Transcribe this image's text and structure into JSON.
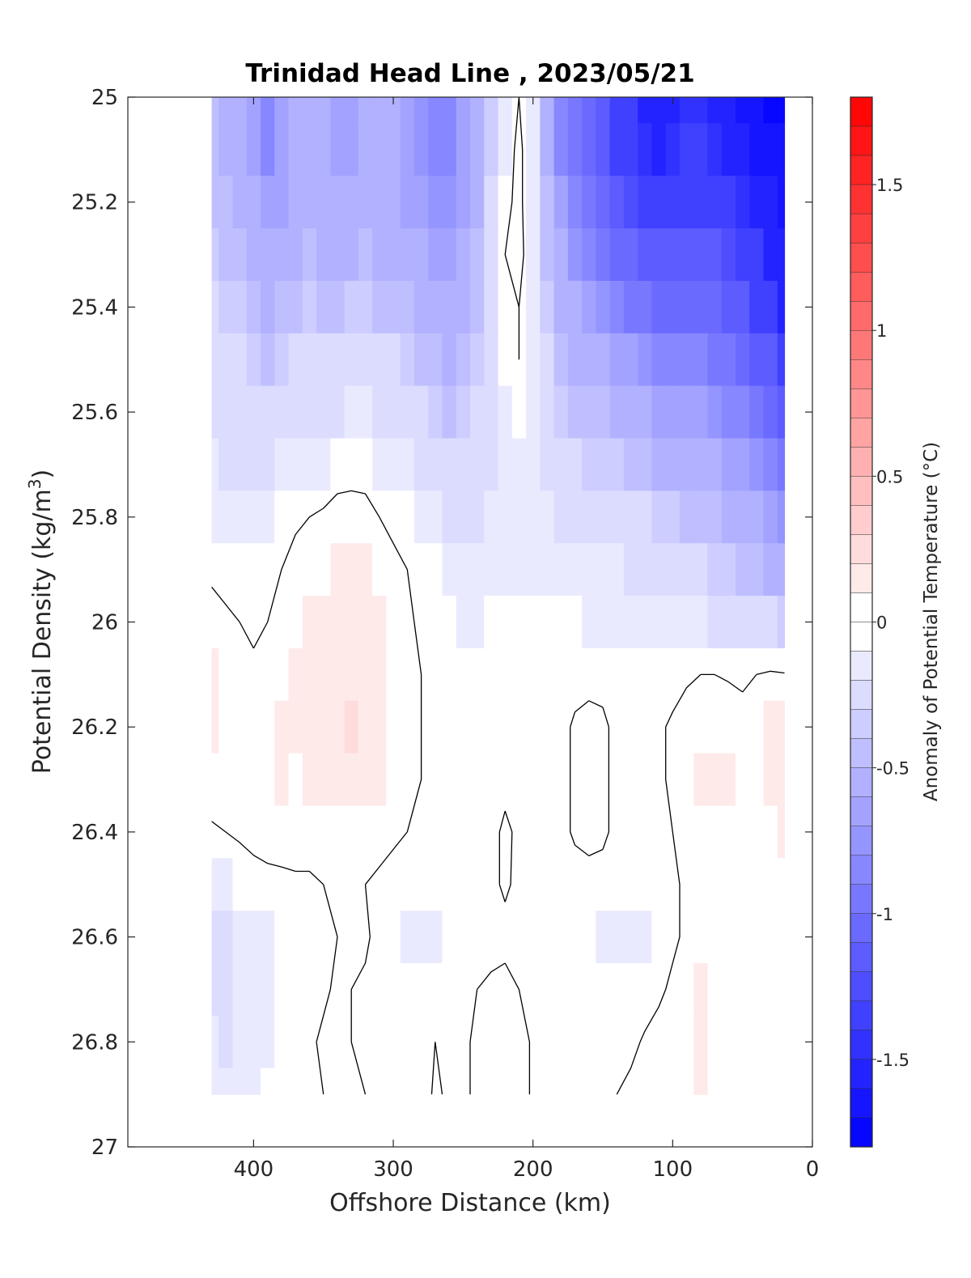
{
  "chart_data": {
    "type": "heatmap",
    "subtype": "filled contour section",
    "title": "Trinidad Head Line , 2023/05/21",
    "xlabel": "Offshore Distance (km)",
    "ylabel": "Potential Density (kg/m3)",
    "ylabel_main": "Potential Density (kg/m",
    "ylabel_sup": "3",
    "ylabel_close": ")",
    "colorbar_label": "Anomaly of Potential Temperature (°C)",
    "x_axis": {
      "lim": [
        490,
        0
      ],
      "reversed": true,
      "ticks": [
        400,
        300,
        200,
        100,
        0
      ],
      "tick_labels": [
        "400",
        "300",
        "200",
        "100",
        "0"
      ]
    },
    "y_axis": {
      "lim": [
        25,
        27
      ],
      "reversed": true,
      "ticks": [
        25,
        25.2,
        25.4,
        25.6,
        25.8,
        26,
        26.2,
        26.4,
        26.6,
        26.8,
        27
      ],
      "tick_labels": [
        "25",
        "25.2",
        "25.4",
        "25.6",
        "25.8",
        "26",
        "26.2",
        "26.4",
        "26.6",
        "26.8",
        "27"
      ]
    },
    "colorbar": {
      "lim": [
        -1.8,
        1.8
      ],
      "step": 0.1,
      "ticks": [
        1.5,
        1,
        0.5,
        0,
        -0.5,
        -1,
        -1.5
      ],
      "tick_labels": [
        "1.5",
        "1",
        "0.5",
        "0",
        "-0.5",
        "-1",
        "-1.5"
      ],
      "negative_color": "#0000ff",
      "positive_color": "#ff0000",
      "zero_color": "#ffffff"
    },
    "data_extent": {
      "x": [
        430,
        20
      ],
      "y_top": 25,
      "y_bottom": 26.9
    },
    "contour_levels": [
      0
    ],
    "grid": false,
    "x": [
      430,
      420,
      410,
      400,
      390,
      380,
      370,
      360,
      350,
      340,
      330,
      320,
      310,
      300,
      290,
      280,
      270,
      260,
      250,
      240,
      230,
      220,
      210,
      200,
      190,
      180,
      170,
      160,
      150,
      140,
      130,
      120,
      110,
      100,
      90,
      80,
      70,
      60,
      50,
      40,
      30,
      20
    ],
    "y": [
      25.0,
      25.1,
      25.2,
      25.3,
      25.4,
      25.5,
      25.6,
      25.7,
      25.8,
      25.9,
      26.0,
      26.1,
      26.2,
      26.3,
      26.4,
      26.5,
      26.6,
      26.7,
      26.8,
      26.9
    ],
    "z": [
      [
        -0.45,
        -0.5,
        -0.55,
        -0.65,
        -0.8,
        -0.7,
        -0.6,
        -0.55,
        -0.6,
        -0.65,
        -0.65,
        -0.6,
        -0.55,
        -0.6,
        -0.7,
        -0.75,
        -0.8,
        -0.8,
        -0.7,
        -0.55,
        -0.35,
        -0.1,
        0.0,
        -0.15,
        -0.5,
        -0.8,
        -0.95,
        -1.05,
        -1.15,
        -1.3,
        -1.4,
        -1.5,
        -1.5,
        -1.5,
        -1.45,
        -1.45,
        -1.5,
        -1.55,
        -1.6,
        -1.65,
        -1.7,
        -1.7
      ],
      [
        -0.45,
        -0.5,
        -0.55,
        -0.65,
        -0.8,
        -0.7,
        -0.6,
        -0.55,
        -0.6,
        -0.65,
        -0.65,
        -0.6,
        -0.55,
        -0.6,
        -0.7,
        -0.75,
        -0.8,
        -0.8,
        -0.7,
        -0.55,
        -0.35,
        -0.1,
        0.05,
        -0.15,
        -0.5,
        -0.8,
        -0.95,
        -1.05,
        -1.15,
        -1.3,
        -1.4,
        -1.45,
        -1.5,
        -1.45,
        -1.4,
        -1.4,
        -1.45,
        -1.5,
        -1.55,
        -1.6,
        -1.65,
        -1.65
      ],
      [
        -0.4,
        -0.45,
        -0.5,
        -0.6,
        -0.7,
        -0.65,
        -0.55,
        -0.5,
        -0.55,
        -0.6,
        -0.6,
        -0.55,
        -0.55,
        -0.55,
        -0.65,
        -0.7,
        -0.75,
        -0.75,
        -0.65,
        -0.5,
        -0.3,
        -0.05,
        0.05,
        -0.15,
        -0.45,
        -0.7,
        -0.85,
        -0.95,
        -1.05,
        -1.15,
        -1.25,
        -1.3,
        -1.3,
        -1.3,
        -1.3,
        -1.3,
        -1.35,
        -1.4,
        -1.45,
        -1.5,
        -1.55,
        -1.6
      ],
      [
        -0.35,
        -0.4,
        -0.45,
        -0.5,
        -0.6,
        -0.55,
        -0.5,
        -0.45,
        -0.5,
        -0.55,
        -0.5,
        -0.45,
        -0.5,
        -0.5,
        -0.55,
        -0.6,
        -0.65,
        -0.7,
        -0.6,
        -0.45,
        -0.25,
        0.0,
        0.05,
        -0.1,
        -0.4,
        -0.6,
        -0.75,
        -0.85,
        -0.9,
        -1.0,
        -1.05,
        -1.1,
        -1.15,
        -1.15,
        -1.15,
        -1.2,
        -1.2,
        -1.25,
        -1.35,
        -1.4,
        -1.5,
        -1.55
      ],
      [
        -0.3,
        -0.35,
        -0.35,
        -0.45,
        -0.5,
        -0.45,
        -0.4,
        -0.35,
        -0.4,
        -0.4,
        -0.35,
        -0.35,
        -0.4,
        -0.4,
        -0.45,
        -0.5,
        -0.55,
        -0.6,
        -0.55,
        -0.4,
        -0.2,
        -0.05,
        0.0,
        -0.1,
        -0.35,
        -0.5,
        -0.6,
        -0.7,
        -0.75,
        -0.85,
        -0.9,
        -0.95,
        -1.0,
        -1.0,
        -1.0,
        -1.05,
        -1.05,
        -1.1,
        -1.2,
        -1.3,
        -1.4,
        -1.5
      ],
      [
        -0.25,
        -0.3,
        -0.3,
        -0.35,
        -0.4,
        -0.35,
        -0.3,
        -0.25,
        -0.3,
        -0.3,
        -0.25,
        -0.25,
        -0.3,
        -0.3,
        -0.35,
        -0.4,
        -0.45,
        -0.5,
        -0.45,
        -0.35,
        -0.2,
        -0.05,
        0.0,
        -0.1,
        -0.3,
        -0.4,
        -0.5,
        -0.55,
        -0.6,
        -0.65,
        -0.7,
        -0.75,
        -0.8,
        -0.8,
        -0.85,
        -0.85,
        -0.9,
        -0.95,
        -1.0,
        -1.1,
        -1.2,
        -1.35
      ],
      [
        -0.2,
        -0.25,
        -0.25,
        -0.3,
        -0.3,
        -0.25,
        -0.2,
        -0.2,
        -0.2,
        -0.2,
        -0.15,
        -0.15,
        -0.2,
        -0.2,
        -0.25,
        -0.3,
        -0.35,
        -0.4,
        -0.35,
        -0.3,
        -0.2,
        -0.1,
        -0.05,
        -0.1,
        -0.25,
        -0.35,
        -0.4,
        -0.45,
        -0.45,
        -0.5,
        -0.55,
        -0.6,
        -0.65,
        -0.65,
        -0.7,
        -0.7,
        -0.75,
        -0.8,
        -0.85,
        -0.95,
        -1.05,
        -1.15
      ],
      [
        -0.15,
        -0.2,
        -0.2,
        -0.2,
        -0.2,
        -0.15,
        -0.1,
        -0.1,
        -0.1,
        -0.05,
        -0.05,
        -0.05,
        -0.1,
        -0.1,
        -0.15,
        -0.2,
        -0.25,
        -0.3,
        -0.3,
        -0.25,
        -0.2,
        -0.15,
        -0.1,
        -0.15,
        -0.2,
        -0.25,
        -0.3,
        -0.35,
        -0.35,
        -0.35,
        -0.4,
        -0.45,
        -0.5,
        -0.5,
        -0.5,
        -0.55,
        -0.6,
        -0.65,
        -0.7,
        -0.75,
        -0.85,
        -0.95
      ],
      [
        -0.1,
        -0.12,
        -0.12,
        -0.12,
        -0.1,
        -0.05,
        -0.02,
        0.0,
        0.02,
        0.04,
        0.05,
        0.04,
        0.0,
        -0.02,
        -0.05,
        -0.1,
        -0.15,
        -0.2,
        -0.22,
        -0.2,
        -0.18,
        -0.15,
        -0.12,
        -0.15,
        -0.15,
        -0.2,
        -0.22,
        -0.25,
        -0.25,
        -0.25,
        -0.3,
        -0.3,
        -0.35,
        -0.35,
        -0.4,
        -0.4,
        -0.45,
        -0.5,
        -0.55,
        -0.6,
        -0.65,
        -0.75
      ],
      [
        -0.02,
        -0.04,
        -0.06,
        -0.06,
        -0.04,
        0.0,
        0.04,
        0.06,
        0.08,
        0.1,
        0.1,
        0.1,
        0.06,
        0.02,
        0.0,
        -0.04,
        -0.08,
        -0.12,
        -0.15,
        -0.15,
        -0.12,
        -0.1,
        -0.1,
        -0.1,
        -0.12,
        -0.15,
        -0.15,
        -0.18,
        -0.18,
        -0.18,
        -0.2,
        -0.22,
        -0.25,
        -0.25,
        -0.28,
        -0.3,
        -0.32,
        -0.35,
        -0.4,
        -0.45,
        -0.5,
        -0.55
      ],
      [
        0.04,
        0.02,
        0.0,
        -0.02,
        0.0,
        0.04,
        0.08,
        0.1,
        0.12,
        0.14,
        0.15,
        0.14,
        0.1,
        0.06,
        0.02,
        -0.02,
        -0.05,
        -0.08,
        -0.1,
        -0.1,
        -0.08,
        -0.06,
        -0.05,
        -0.05,
        -0.06,
        -0.08,
        -0.08,
        -0.1,
        -0.1,
        -0.1,
        -0.12,
        -0.12,
        -0.15,
        -0.15,
        -0.15,
        -0.18,
        -0.2,
        -0.2,
        -0.22,
        -0.25,
        -0.3,
        -0.35
      ],
      [
        0.1,
        0.06,
        0.02,
        0.02,
        0.04,
        0.08,
        0.1,
        0.12,
        0.14,
        0.16,
        0.18,
        0.16,
        0.12,
        0.08,
        0.04,
        0.0,
        -0.02,
        -0.05,
        -0.08,
        -0.08,
        -0.06,
        -0.04,
        -0.02,
        -0.03,
        -0.03,
        -0.04,
        -0.05,
        -0.05,
        -0.05,
        -0.06,
        -0.07,
        -0.07,
        -0.07,
        -0.05,
        -0.02,
        0.0,
        0.0,
        -0.01,
        -0.02,
        0.0,
        0.02,
        0.01
      ],
      [
        0.12,
        0.06,
        0.04,
        0.06,
        0.08,
        0.1,
        0.1,
        0.12,
        0.14,
        0.16,
        0.2,
        0.18,
        0.12,
        0.08,
        0.04,
        0.0,
        -0.02,
        -0.04,
        -0.06,
        -0.06,
        -0.05,
        -0.03,
        -0.02,
        -0.03,
        -0.03,
        -0.04,
        0.02,
        0.05,
        0.03,
        -0.04,
        -0.06,
        -0.04,
        -0.02,
        0.02,
        0.06,
        0.08,
        0.08,
        0.06,
        0.04,
        0.06,
        0.1,
        0.12
      ],
      [
        0.08,
        0.06,
        0.04,
        0.06,
        0.08,
        0.12,
        0.08,
        0.1,
        0.12,
        0.14,
        0.14,
        0.12,
        0.1,
        0.06,
        0.03,
        0.0,
        -0.02,
        -0.04,
        -0.05,
        -0.05,
        -0.04,
        -0.03,
        -0.02,
        -0.03,
        -0.04,
        -0.04,
        0.02,
        0.05,
        0.03,
        -0.04,
        -0.06,
        -0.04,
        -0.02,
        0.02,
        0.06,
        0.1,
        0.12,
        0.1,
        0.08,
        0.08,
        0.1,
        0.14
      ],
      [
        -0.02,
        0.0,
        0.02,
        0.04,
        0.06,
        0.06,
        0.06,
        0.06,
        0.08,
        0.08,
        0.08,
        0.06,
        0.04,
        0.02,
        0.0,
        -0.02,
        -0.04,
        -0.05,
        -0.06,
        -0.05,
        -0.03,
        0.02,
        -0.02,
        -0.03,
        -0.04,
        -0.04,
        0.02,
        0.05,
        0.03,
        -0.04,
        -0.06,
        -0.05,
        -0.04,
        0.0,
        0.04,
        0.06,
        0.08,
        0.06,
        0.04,
        0.06,
        0.08,
        0.1
      ],
      [
        -0.15,
        -0.12,
        -0.08,
        -0.05,
        -0.04,
        -0.03,
        -0.02,
        -0.02,
        0.0,
        0.02,
        0.02,
        0.0,
        -0.02,
        -0.04,
        -0.06,
        -0.06,
        -0.08,
        -0.08,
        -0.08,
        -0.06,
        -0.03,
        0.02,
        -0.03,
        -0.04,
        -0.05,
        -0.06,
        -0.06,
        -0.06,
        -0.06,
        -0.06,
        -0.08,
        -0.08,
        -0.06,
        -0.02,
        0.02,
        0.04,
        0.06,
        0.02,
        0.01,
        0.02,
        0.04,
        0.02
      ],
      [
        -0.25,
        -0.22,
        -0.18,
        -0.14,
        -0.1,
        -0.07,
        -0.05,
        -0.03,
        -0.01,
        0.0,
        0.02,
        0.01,
        -0.02,
        -0.06,
        -0.1,
        -0.14,
        -0.12,
        -0.08,
        -0.06,
        -0.05,
        -0.04,
        -0.04,
        -0.05,
        -0.06,
        -0.07,
        -0.08,
        -0.08,
        -0.08,
        -0.1,
        -0.1,
        -0.12,
        -0.1,
        -0.06,
        -0.02,
        0.02,
        0.05,
        0.06,
        0.02,
        0.01,
        0.02,
        0.04,
        0.03
      ],
      [
        -0.22,
        -0.22,
        -0.18,
        -0.14,
        -0.1,
        -0.08,
        -0.06,
        -0.04,
        -0.02,
        0.02,
        0.0,
        -0.01,
        -0.02,
        -0.04,
        -0.05,
        -0.06,
        -0.05,
        -0.04,
        -0.02,
        0.0,
        0.02,
        0.04,
        0.0,
        -0.02,
        -0.04,
        -0.08,
        -0.08,
        -0.06,
        -0.06,
        -0.05,
        -0.04,
        -0.04,
        -0.02,
        0.02,
        0.06,
        0.1,
        0.08,
        0.06,
        0.04,
        0.04,
        0.05,
        0.04
      ],
      [
        -0.18,
        -0.2,
        -0.18,
        -0.14,
        -0.1,
        -0.08,
        -0.04,
        -0.02,
        0.02,
        0.04,
        0.0,
        -0.01,
        -0.02,
        -0.03,
        -0.04,
        -0.03,
        0.0,
        -0.01,
        -0.01,
        0.01,
        0.03,
        0.08,
        0.06,
        -0.02,
        -0.04,
        -0.08,
        -0.09,
        -0.06,
        -0.05,
        -0.03,
        -0.02,
        0.01,
        0.04,
        0.06,
        0.08,
        0.1,
        0.08,
        0.06,
        0.05,
        0.05,
        0.05,
        0.03
      ],
      [
        -0.16,
        -0.18,
        -0.16,
        -0.12,
        -0.08,
        -0.06,
        -0.03,
        -0.01,
        0.0,
        0.0,
        0.0,
        0.0,
        -0.01,
        -0.02,
        -0.03,
        -0.03,
        0.01,
        -0.01,
        -0.01,
        0.01,
        0.03,
        0.08,
        0.06,
        -0.02,
        -0.04,
        -0.08,
        -0.08,
        -0.05,
        -0.04,
        0.0,
        0.02,
        0.03,
        0.05,
        0.06,
        0.08,
        0.1,
        0.08,
        0.06,
        0.05,
        0.05,
        0.05,
        0.03
      ]
    ]
  }
}
